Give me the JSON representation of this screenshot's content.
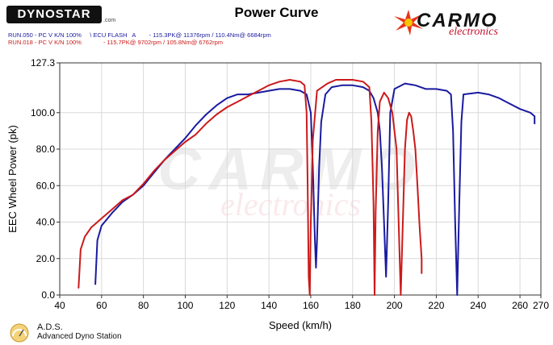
{
  "header": {
    "dynostar_logo": "DYNOSTAR",
    "dynostar_sub": ".com",
    "title": "Power Curve",
    "carmo_logo": "CARMO",
    "carmo_sub": "electronics"
  },
  "runs": [
    {
      "text": "RUN.050 - PC V K/N 100%     \\ ECU FLASH   A        - 115.3PK@ 11376rpm / 110.4Nm@ 6684rpm",
      "color": "#1a1aa0"
    },
    {
      "text": "RUN.018 - PC V K/N 100%             - 115.7PK@ 9702rpm / 105.8Nm@ 6762rpm",
      "color": "#cc1a1a"
    }
  ],
  "watermark": {
    "main": "CARMO",
    "sub": "electronics"
  },
  "footer": {
    "title": "A.D.S.",
    "subtitle": "Advanced Dyno Station"
  },
  "chart_data": {
    "type": "line",
    "xlabel": "Speed (km/h)",
    "ylabel": "EEC Wheel Power (pk)",
    "xlim": [
      40,
      270
    ],
    "ylim": [
      0,
      127.3
    ],
    "xticks": [
      "40",
      "60",
      "80",
      "100",
      "120",
      "140",
      "160",
      "180",
      "200",
      "220",
      "240",
      "260",
      "270"
    ],
    "yticks": [
      "0.0",
      "20.0",
      "40.0",
      "60.0",
      "80.0",
      "100.0",
      "127.3"
    ],
    "grid": true,
    "series": [
      {
        "name": "RUN.050",
        "color": "#1a1aa0",
        "points": [
          [
            57,
            6
          ],
          [
            58,
            30
          ],
          [
            60,
            38
          ],
          [
            65,
            45
          ],
          [
            70,
            51
          ],
          [
            75,
            55
          ],
          [
            80,
            60
          ],
          [
            85,
            67
          ],
          [
            90,
            74
          ],
          [
            95,
            80
          ],
          [
            100,
            86
          ],
          [
            105,
            93
          ],
          [
            110,
            99
          ],
          [
            115,
            104
          ],
          [
            120,
            108
          ],
          [
            125,
            110
          ],
          [
            130,
            110
          ],
          [
            135,
            111
          ],
          [
            140,
            112
          ],
          [
            145,
            113
          ],
          [
            150,
            113
          ],
          [
            155,
            112
          ],
          [
            158,
            110
          ],
          [
            160,
            100
          ],
          [
            161,
            70
          ],
          [
            162,
            30
          ],
          [
            162.5,
            15
          ],
          [
            163,
            30
          ],
          [
            164,
            70
          ],
          [
            165,
            95
          ],
          [
            167,
            110
          ],
          [
            170,
            114
          ],
          [
            175,
            115
          ],
          [
            180,
            115
          ],
          [
            185,
            114
          ],
          [
            188,
            112
          ],
          [
            190,
            108
          ],
          [
            192,
            100
          ],
          [
            193,
            90
          ],
          [
            194,
            70
          ],
          [
            195,
            40
          ],
          [
            196,
            10
          ],
          [
            197,
            50
          ],
          [
            198,
            100
          ],
          [
            200,
            113
          ],
          [
            205,
            116
          ],
          [
            210,
            115
          ],
          [
            215,
            113
          ],
          [
            220,
            113
          ],
          [
            225,
            112
          ],
          [
            227,
            110
          ],
          [
            228,
            90
          ],
          [
            229,
            40
          ],
          [
            230,
            0
          ],
          [
            231,
            50
          ],
          [
            232,
            95
          ],
          [
            233,
            110
          ],
          [
            240,
            111
          ],
          [
            245,
            110
          ],
          [
            250,
            108
          ],
          [
            255,
            105
          ],
          [
            260,
            102
          ],
          [
            265,
            100
          ],
          [
            267,
            98
          ],
          [
            267,
            94
          ]
        ]
      },
      {
        "name": "RUN.018",
        "color": "#cc1a1a",
        "points": [
          [
            49,
            4
          ],
          [
            50,
            25
          ],
          [
            52,
            32
          ],
          [
            55,
            37
          ],
          [
            60,
            42
          ],
          [
            65,
            47
          ],
          [
            70,
            52
          ],
          [
            75,
            55
          ],
          [
            80,
            61
          ],
          [
            85,
            68
          ],
          [
            90,
            74
          ],
          [
            95,
            79
          ],
          [
            100,
            84
          ],
          [
            105,
            88
          ],
          [
            110,
            94
          ],
          [
            115,
            99
          ],
          [
            120,
            103
          ],
          [
            125,
            106
          ],
          [
            130,
            109
          ],
          [
            135,
            112
          ],
          [
            140,
            115
          ],
          [
            145,
            117
          ],
          [
            150,
            118
          ],
          [
            155,
            117
          ],
          [
            157,
            115
          ],
          [
            158,
            100
          ],
          [
            158.5,
            60
          ],
          [
            159,
            10
          ],
          [
            159.5,
            0
          ],
          [
            160,
            40
          ],
          [
            161,
            85
          ],
          [
            163,
            112
          ],
          [
            168,
            116
          ],
          [
            172,
            118
          ],
          [
            175,
            118
          ],
          [
            180,
            118
          ],
          [
            185,
            117
          ],
          [
            188,
            114
          ],
          [
            189,
            95
          ],
          [
            190,
            50
          ],
          [
            190.5,
            0
          ],
          [
            191,
            45
          ],
          [
            192,
            90
          ],
          [
            193,
            106
          ],
          [
            195,
            111
          ],
          [
            197,
            108
          ],
          [
            199,
            100
          ],
          [
            201,
            80
          ],
          [
            202,
            40
          ],
          [
            203,
            0
          ],
          [
            204,
            40
          ],
          [
            205,
            80
          ],
          [
            206,
            96
          ],
          [
            207,
            100
          ],
          [
            208,
            98
          ],
          [
            209,
            90
          ],
          [
            210,
            80
          ],
          [
            211,
            60
          ],
          [
            212,
            38
          ],
          [
            213,
            20
          ],
          [
            213,
            12
          ]
        ]
      }
    ]
  }
}
